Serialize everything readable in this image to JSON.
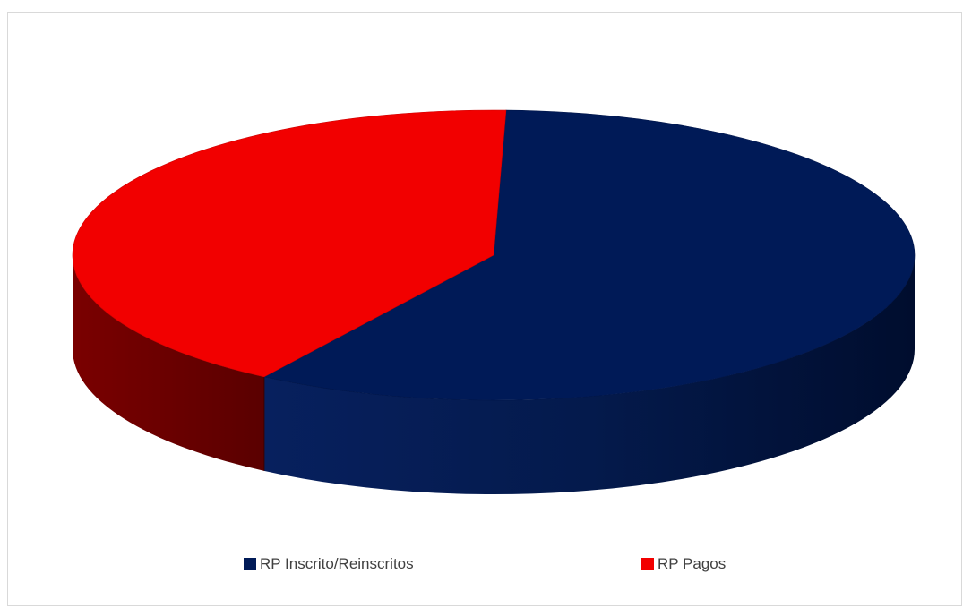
{
  "chart_data": {
    "type": "pie",
    "style": "3d",
    "title": "",
    "labels": [
      "RP Inscrito/Reinscritos",
      "RP Pagos"
    ],
    "values": [
      58.7,
      41.3
    ],
    "unit": "percent",
    "colors": [
      "#001A57",
      "#F20000"
    ],
    "legend_position": "bottom"
  },
  "legend": {
    "items": [
      {
        "label": "RP Inscrito/Reinscritos",
        "color": "#001A57"
      },
      {
        "label": "RP Pagos",
        "color": "#F20000"
      }
    ]
  }
}
